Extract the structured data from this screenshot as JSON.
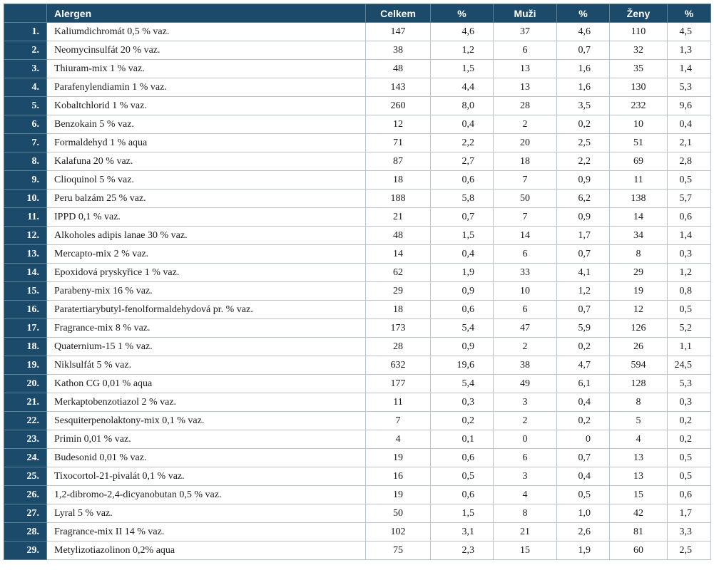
{
  "table": {
    "headers": {
      "index": "",
      "allergen": "Alergen",
      "celkem": "Celkem",
      "pct_celkem": "%",
      "muzi": "Muži",
      "pct_muzi": "%",
      "zeny": "Ženy",
      "pct_zeny": "%"
    },
    "rows": [
      {
        "idx": "1.",
        "allergen": "Kaliumdichromát 0,5 % vaz.",
        "celkem": "147",
        "pct_celkem": "4,6",
        "muzi": "37",
        "pct_muzi": "4,6",
        "zeny": "110",
        "pct_zeny": "4,5"
      },
      {
        "idx": "2.",
        "allergen": "Neomycinsulfát 20 % vaz.",
        "celkem": "38",
        "pct_celkem": "1,2",
        "muzi": "6",
        "pct_muzi": "0,7",
        "zeny": "32",
        "pct_zeny": "1,3"
      },
      {
        "idx": "3.",
        "allergen": "Thiuram-mix 1 % vaz.",
        "celkem": "48",
        "pct_celkem": "1,5",
        "muzi": "13",
        "pct_muzi": "1,6",
        "zeny": "35",
        "pct_zeny": "1,4"
      },
      {
        "idx": "4.",
        "allergen": "Parafenylendiamin 1 % vaz.",
        "celkem": "143",
        "pct_celkem": "4,4",
        "muzi": "13",
        "pct_muzi": "1,6",
        "zeny": "130",
        "pct_zeny": "5,3"
      },
      {
        "idx": "5.",
        "allergen": "Kobaltchlorid 1 % vaz.",
        "celkem": "260",
        "pct_celkem": "8,0",
        "muzi": "28",
        "pct_muzi": "3,5",
        "zeny": "232",
        "pct_zeny": "9,6"
      },
      {
        "idx": "6.",
        "allergen": "Benzokain 5 % vaz.",
        "celkem": "12",
        "pct_celkem": "0,4",
        "muzi": "2",
        "pct_muzi": "0,2",
        "zeny": "10",
        "pct_zeny": "0,4"
      },
      {
        "idx": "7.",
        "allergen": "Formaldehyd 1 % aqua",
        "celkem": "71",
        "pct_celkem": "2,2",
        "muzi": "20",
        "pct_muzi": "2,5",
        "zeny": "51",
        "pct_zeny": "2,1"
      },
      {
        "idx": "8.",
        "allergen": "Kalafuna 20 % vaz.",
        "celkem": "87",
        "pct_celkem": "2,7",
        "muzi": "18",
        "pct_muzi": "2,2",
        "zeny": "69",
        "pct_zeny": "2,8"
      },
      {
        "idx": "9.",
        "allergen": "Clioquinol 5 % vaz.",
        "celkem": "18",
        "pct_celkem": "0,6",
        "muzi": "7",
        "pct_muzi": "0,9",
        "zeny": "11",
        "pct_zeny": "0,5"
      },
      {
        "idx": "10.",
        "allergen": "Peru balzám 25 % vaz.",
        "celkem": "188",
        "pct_celkem": "5,8",
        "muzi": "50",
        "pct_muzi": "6,2",
        "zeny": "138",
        "pct_zeny": "5,7"
      },
      {
        "idx": "11.",
        "allergen": "IPPD 0,1 % vaz.",
        "celkem": "21",
        "pct_celkem": "0,7",
        "muzi": "7",
        "pct_muzi": "0,9",
        "zeny": "14",
        "pct_zeny": "0,6"
      },
      {
        "idx": "12.",
        "allergen": "Alkoholes adipis lanae 30 % vaz.",
        "celkem": "48",
        "pct_celkem": "1,5",
        "muzi": "14",
        "pct_muzi": "1,7",
        "zeny": "34",
        "pct_zeny": "1,4"
      },
      {
        "idx": "13.",
        "allergen": "Mercapto-mix 2 % vaz.",
        "celkem": "14",
        "pct_celkem": "0,4",
        "muzi": "6",
        "pct_muzi": "0,7",
        "zeny": "8",
        "pct_zeny": "0,3"
      },
      {
        "idx": "14.",
        "allergen": "Epoxidová pryskyřice 1 % vaz.",
        "celkem": "62",
        "pct_celkem": "1,9",
        "muzi": "33",
        "pct_muzi": "4,1",
        "zeny": "29",
        "pct_zeny": "1,2"
      },
      {
        "idx": "15.",
        "allergen": "Parabeny-mix 16 % vaz.",
        "celkem": "29",
        "pct_celkem": "0,9",
        "muzi": "10",
        "pct_muzi": "1,2",
        "zeny": "19",
        "pct_zeny": "0,8"
      },
      {
        "idx": "16.",
        "allergen": "Paratertiarybutyl-fenolformaldehydová pr. % vaz.",
        "celkem": "18",
        "pct_celkem": "0,6",
        "muzi": "6",
        "pct_muzi": "0,7",
        "zeny": "12",
        "pct_zeny": "0,5"
      },
      {
        "idx": "17.",
        "allergen": "Fragrance-mix 8 % vaz.",
        "celkem": "173",
        "pct_celkem": "5,4",
        "muzi": "47",
        "pct_muzi": "5,9",
        "zeny": "126",
        "pct_zeny": "5,2"
      },
      {
        "idx": "18.",
        "allergen": "Quaternium-15 1 % vaz.",
        "celkem": "28",
        "pct_celkem": "0,9",
        "muzi": "2",
        "pct_muzi": "0,2",
        "zeny": "26",
        "pct_zeny": "1,1"
      },
      {
        "idx": "19.",
        "allergen": "Niklsulfát 5 % vaz.",
        "celkem": "632",
        "pct_celkem": "19,6",
        "muzi": "38",
        "pct_muzi": "4,7",
        "zeny": "594",
        "pct_zeny": "24,5"
      },
      {
        "idx": "20.",
        "allergen": "Kathon CG 0,01 % aqua",
        "celkem": "177",
        "pct_celkem": "5,4",
        "muzi": "49",
        "pct_muzi": "6,1",
        "zeny": "128",
        "pct_zeny": "5,3"
      },
      {
        "idx": "21.",
        "allergen": "Merkaptobenzotiazol 2 % vaz.",
        "celkem": "11",
        "pct_celkem": "0,3",
        "muzi": "3",
        "pct_muzi": "0,4",
        "zeny": "8",
        "pct_zeny": "0,3"
      },
      {
        "idx": "22.",
        "allergen": "Sesquiterpenolaktony-mix 0,1 % vaz.",
        "celkem": "7",
        "pct_celkem": "0,2",
        "muzi": "2",
        "pct_muzi": "0,2",
        "zeny": "5",
        "pct_zeny": "0,2"
      },
      {
        "idx": "23.",
        "allergen": "Primin 0,01 % vaz.",
        "celkem": "4",
        "pct_celkem": "0,1",
        "muzi": "0",
        "pct_muzi": "0",
        "zeny": "4",
        "pct_zeny": "0,2"
      },
      {
        "idx": "24.",
        "allergen": "Budesonid 0,01 % vaz.",
        "celkem": "19",
        "pct_celkem": "0,6",
        "muzi": "6",
        "pct_muzi": "0,7",
        "zeny": "13",
        "pct_zeny": "0,5"
      },
      {
        "idx": "25.",
        "allergen": "Tixocortol-21-pivalát 0,1 % vaz.",
        "celkem": "16",
        "pct_celkem": "0,5",
        "muzi": "3",
        "pct_muzi": "0,4",
        "zeny": "13",
        "pct_zeny": "0,5"
      },
      {
        "idx": "26.",
        "allergen": "1,2-dibromo-2,4-dicyanobutan 0,5 % vaz.",
        "celkem": "19",
        "pct_celkem": "0,6",
        "muzi": "4",
        "pct_muzi": "0,5",
        "zeny": "15",
        "pct_zeny": "0,6"
      },
      {
        "idx": "27.",
        "allergen": "Lyral 5 % vaz.",
        "celkem": "50",
        "pct_celkem": "1,5",
        "muzi": "8",
        "pct_muzi": "1,0",
        "zeny": "42",
        "pct_zeny": "1,7"
      },
      {
        "idx": "28.",
        "allergen": "Fragrance-mix II 14 % vaz.",
        "celkem": "102",
        "pct_celkem": "3,1",
        "muzi": "21",
        "pct_muzi": "2,6",
        "zeny": "81",
        "pct_zeny": "3,3"
      },
      {
        "idx": "29.",
        "allergen": "Metylizotiazolinon 0,2% aqua",
        "celkem": "75",
        "pct_celkem": "2,3",
        "muzi": "15",
        "pct_muzi": "1,9",
        "zeny": "60",
        "pct_zeny": "2,5"
      }
    ]
  }
}
